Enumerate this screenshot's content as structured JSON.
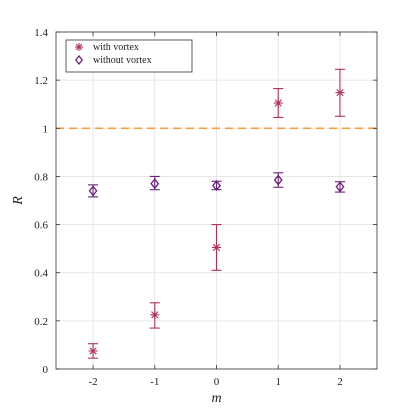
{
  "chart_data": {
    "type": "scatter",
    "xlabel": "m",
    "ylabel": "R",
    "xlim": [
      -2.6,
      2.6
    ],
    "ylim": [
      0,
      1.4
    ],
    "xticks": [
      -2,
      -1,
      0,
      1,
      2
    ],
    "xtick_labels": [
      "-2",
      "-1",
      "0",
      "1",
      "2"
    ],
    "yticks": [
      0,
      0.2,
      0.4,
      0.6,
      0.8,
      1,
      1.2,
      1.4
    ],
    "ytick_labels": [
      "0",
      "0.2",
      "0.4",
      "0.6",
      "0.8",
      "1",
      "1.2",
      "1.4"
    ],
    "grid": true,
    "legend_position": "top-left",
    "reference_line": {
      "y": 1,
      "color": "#f5a142",
      "style": "dashed"
    },
    "series": [
      {
        "name": "with vortex",
        "marker": "asterisk",
        "color": "#b0305a",
        "x": [
          -2,
          -1,
          0,
          1,
          2
        ],
        "y": [
          0.075,
          0.225,
          0.505,
          1.105,
          1.148
        ],
        "err_low": [
          0.045,
          0.17,
          0.41,
          1.045,
          1.05
        ],
        "err_high": [
          0.105,
          0.275,
          0.6,
          1.165,
          1.245
        ]
      },
      {
        "name": "without vortex",
        "marker": "diamond",
        "color": "#6a1f7a",
        "x": [
          -2,
          -1,
          0,
          1,
          2
        ],
        "y": [
          0.74,
          0.77,
          0.762,
          0.785,
          0.757
        ],
        "err_low": [
          0.715,
          0.745,
          0.745,
          0.755,
          0.735
        ],
        "err_high": [
          0.765,
          0.8,
          0.78,
          0.815,
          0.778
        ]
      }
    ]
  }
}
